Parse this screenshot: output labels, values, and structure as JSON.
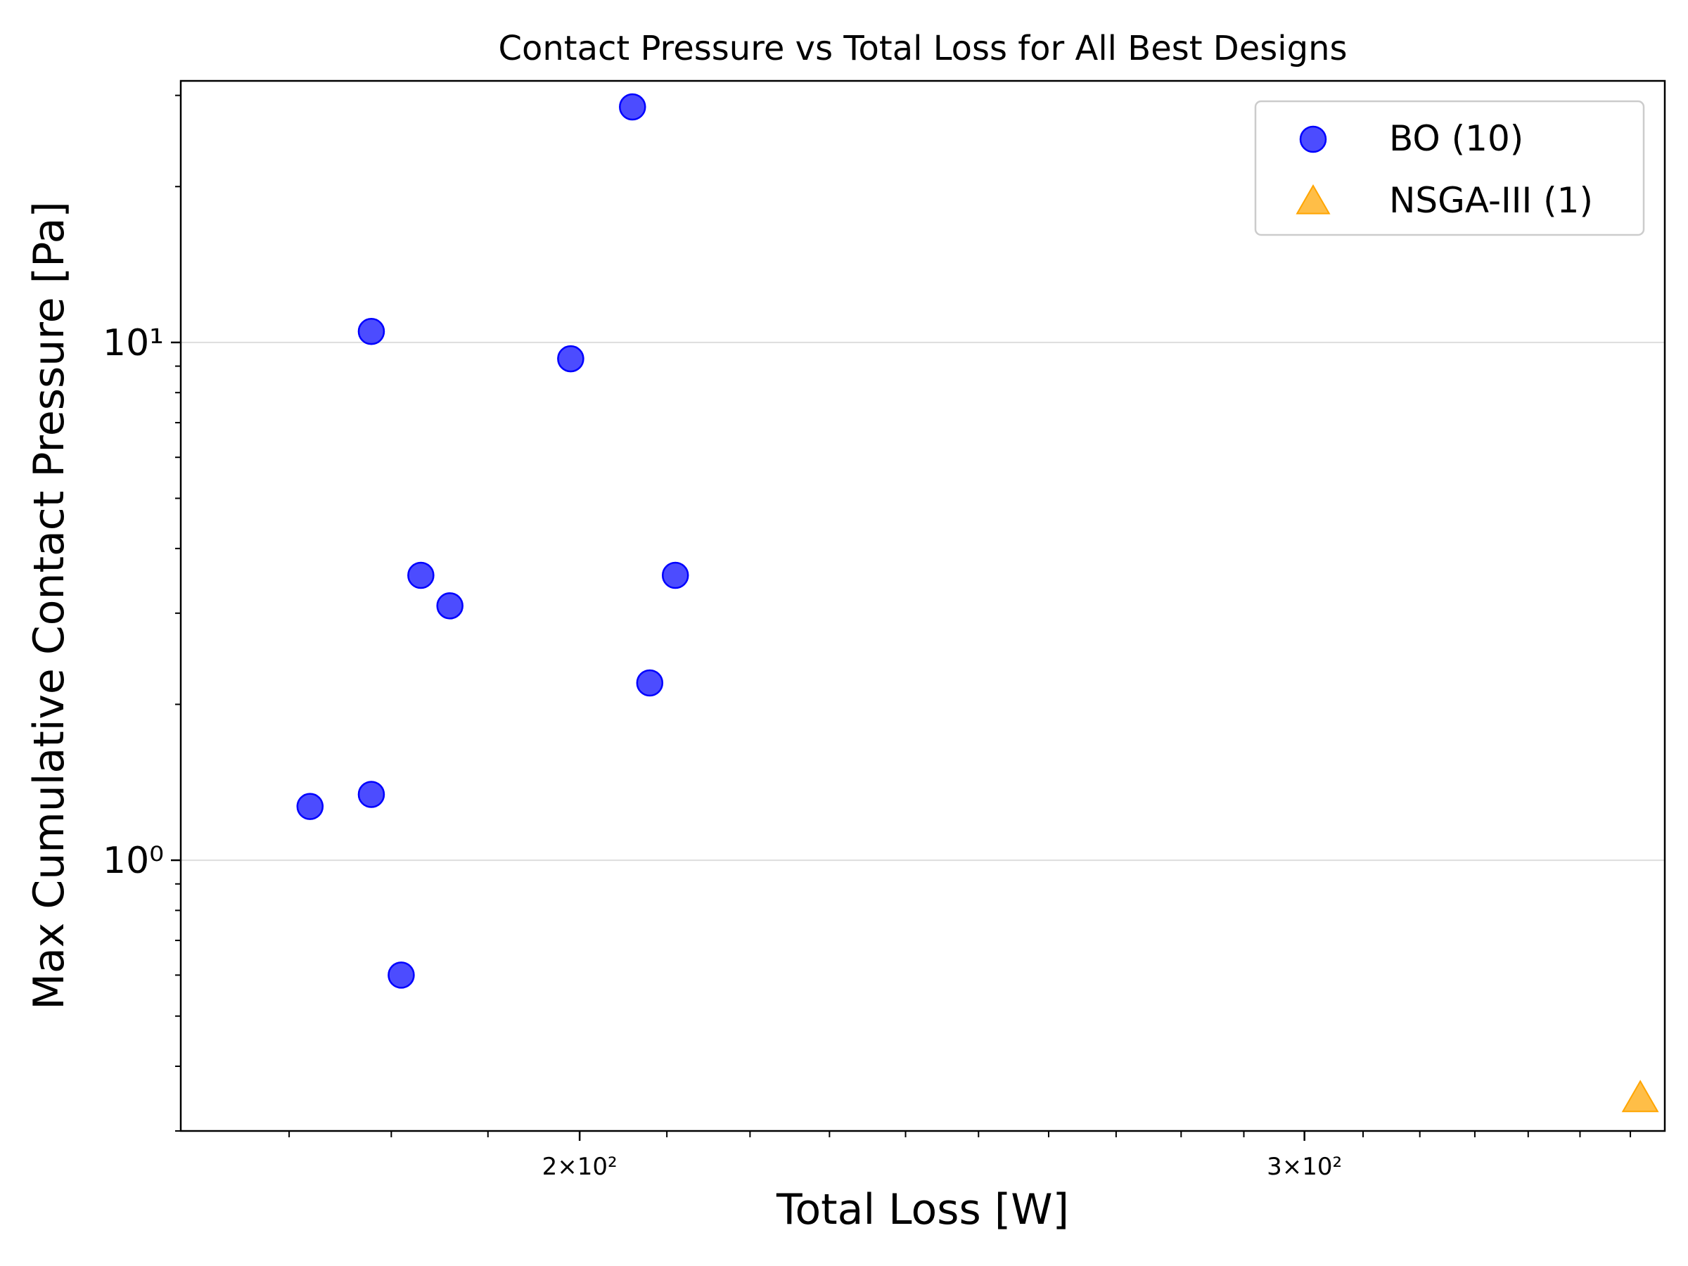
{
  "chart_data": {
    "type": "scatter",
    "title": "Contact Pressure vs Total Loss for All Best Designs",
    "xlabel": "Total Loss [W]",
    "ylabel": "Max Cumulative Contact Pressure [Pa]",
    "x_scale": "log",
    "y_scale": "log",
    "xlim": [
      160,
      367
    ],
    "ylim": [
      0.3,
      32
    ],
    "x_ticks": [
      {
        "value": 200,
        "label": "2×10²"
      },
      {
        "value": 300,
        "label": "3×10²"
      }
    ],
    "y_ticks": [
      {
        "value": 1,
        "label": "10⁰"
      },
      {
        "value": 10,
        "label": "10¹"
      }
    ],
    "grid": "y-major",
    "legend_position": "top-right",
    "series": [
      {
        "name": "BO (10)",
        "marker": "circle",
        "color": "#0000ff",
        "points": [
          {
            "x": 206,
            "y": 28.5
          },
          {
            "x": 178,
            "y": 10.5
          },
          {
            "x": 199,
            "y": 9.3
          },
          {
            "x": 183,
            "y": 3.55
          },
          {
            "x": 186,
            "y": 3.1
          },
          {
            "x": 211,
            "y": 3.55
          },
          {
            "x": 208,
            "y": 2.2
          },
          {
            "x": 178,
            "y": 1.34
          },
          {
            "x": 172,
            "y": 1.27
          },
          {
            "x": 181,
            "y": 0.6
          }
        ]
      },
      {
        "name": "NSGA-III (1)",
        "marker": "triangle",
        "color": "#ffa500",
        "points": [
          {
            "x": 362,
            "y": 0.345
          }
        ]
      }
    ]
  }
}
